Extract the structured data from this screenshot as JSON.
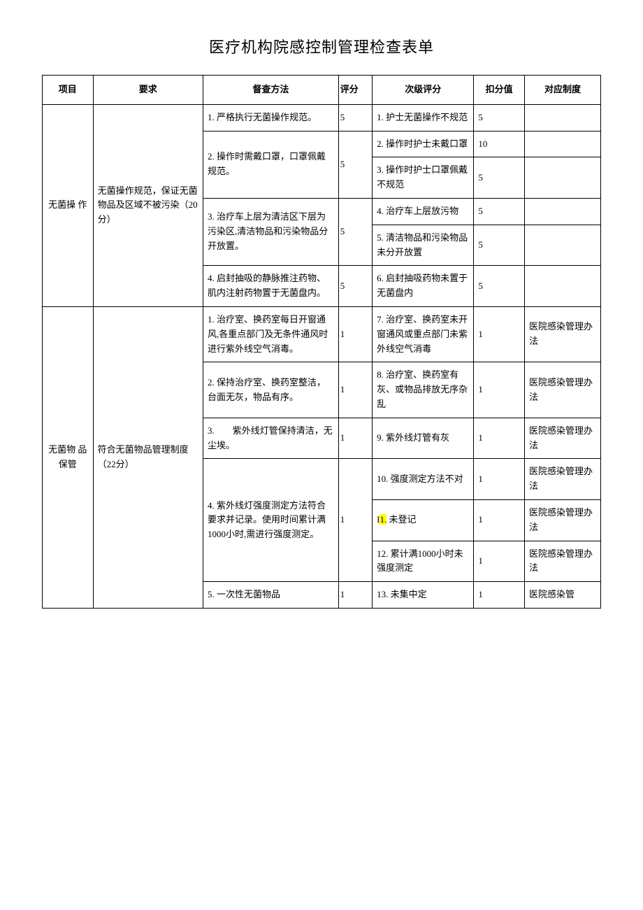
{
  "title": "医疗机构院感控制管理检查表单",
  "headers": {
    "h1": "项目",
    "h2": "要求",
    "h3": "督查方法",
    "h4": "评分",
    "h5": "次级评分",
    "h6": "扣分值",
    "h7": "对应制度"
  },
  "section1": {
    "project": "无菌操\n作",
    "requirement": "无菌操作规范，保证无菌物品及区域不被污染（20分）",
    "rows": {
      "m1": "1. 严格执行无菌操作规范。",
      "s1": "5",
      "sub1": "1. 护士无菌操作不规范",
      "d1": "5",
      "m2": "2. 操作时需戴口罩，口罩佩戴规范。",
      "s2": "5",
      "sub2": "2. 操作时护士未戴口罩",
      "d2": "10",
      "sub3": "3. 操作时护士口罩佩戴不规范",
      "d3": "5",
      "m3": "3. 治疗车上层为清洁区下层为污染区,清洁物品和污染物品分开放置。",
      "s3": "5",
      "sub4": "4. 治疗车上层放污物",
      "d4": "5",
      "sub5": "5. 清洁物品和污染物品未分开放置",
      "d5": "5",
      "m4": "4. 启封抽吸的静脉推注药物、肌内注射药物置于无菌盘内。",
      "s4": "5",
      "sub6": "6. 启封抽吸药物未置于无菌盘内",
      "d6": "5"
    }
  },
  "section2": {
    "project": "无菌物\n品保管",
    "requirement": "符合无菌物品管理制度　　　（22分）",
    "policy": "医院感染管理办法",
    "policy_short": "医院感染管",
    "rows": {
      "m1": "1. 治疗室、换药室每日开窗通风,各重点部门及无条件通风时进行紫外线空气消毒。",
      "s1": "1",
      "sub7": "7. 治疗室、换药室未开窗通风或重点部门未紫外线空气消毒",
      "d7": "1",
      "m2": "2. 保持治疗室、换药室整洁，台面无灰，物品有序。",
      "s2": "1",
      "sub8": "8. 治疗室、换药室有灰、或物品排放无序杂乱",
      "d8": "1",
      "m3": "3.　　紫外线灯管保持清洁，无尘埃。",
      "s3": "1",
      "sub9": "9. 紫外线灯管有灰",
      "d9": "1",
      "m4": "4. 紫外线灯强度测定方法符合要求并记录。使用时间累计满1000小时,需进行强度测定。",
      "s4": "1",
      "sub10": "10. 强度测定方法不对",
      "d10": "1",
      "sub11_prefix": "I",
      "sub11_hl": "1.",
      "sub11_suffix": " 未登记",
      "d11": "1",
      "sub12": "12. 累计满1000小时未强度测定",
      "d12": "1",
      "m5": "5. 一次性无菌物品",
      "s5": "1",
      "sub13": "13. 未集中定",
      "d13": "1"
    }
  }
}
